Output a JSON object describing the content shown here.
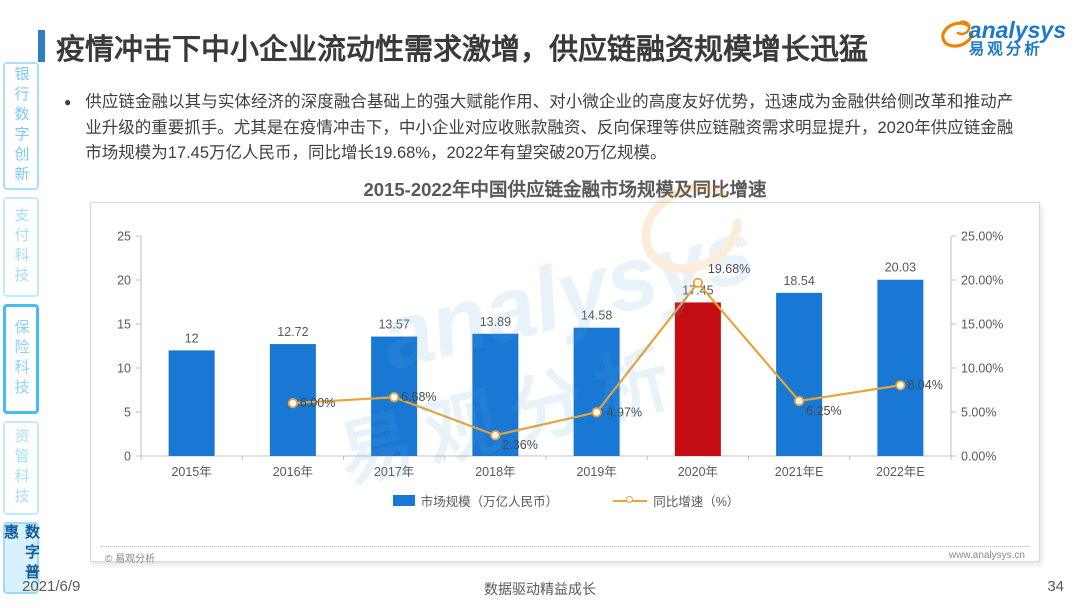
{
  "header": {
    "title": "疫情冲击下中小企业流动性需求激增，供应链融资规模增长迅猛",
    "logo": {
      "brand": "analysys",
      "brand_cn": "易观分析"
    }
  },
  "sidebar": {
    "items": [
      {
        "id": "banking-digital-innovation",
        "label": "银行数字创新",
        "style": "normal",
        "active": false
      },
      {
        "id": "payment-tech",
        "label": "支付科技",
        "style": "faint",
        "active": false
      },
      {
        "id": "insurance-tech",
        "label": "保险科技",
        "style": "outlined",
        "active": false
      },
      {
        "id": "asset-mgmt-tech",
        "label": "资管科技",
        "style": "faint",
        "active": false
      },
      {
        "id": "digital-inclusion",
        "label": "数字普惠",
        "style": "active",
        "active": true
      }
    ]
  },
  "summary": {
    "bullet": "●",
    "text": "供应链金融以其与实体经济的深度融合基础上的强大赋能作用、对小微企业的高度友好优势，迅速成为金融供给侧改革和推动产业升级的重要抓手。尤其是在疫情冲击下，中小企业对应收账款融资、反向保理等供应链融资需求明显提升，2020年供应链金融市场规模为17.45万亿人民币，同比增长19.68%，2022年有望突破20万亿规模。"
  },
  "chart_data": {
    "type": "bar+line combo",
    "title": "2015-2022年中国供应链金融市场规模及同比增速",
    "categories": [
      "2015年",
      "2016年",
      "2017年",
      "2018年",
      "2019年",
      "2020年",
      "2021年E",
      "2022年E"
    ],
    "series": [
      {
        "name": "市场规模（万亿人民币）",
        "type": "bar",
        "axis": "left",
        "values": [
          12,
          12.72,
          13.57,
          13.89,
          14.58,
          17.45,
          18.54,
          20.03
        ],
        "labels": [
          "12",
          "12.72",
          "13.57",
          "13.89",
          "14.58",
          "17.45",
          "18.54",
          "20.03"
        ],
        "color": "#1878D3",
        "highlight_index": 5,
        "highlight_color": "#C40D12"
      },
      {
        "name": "同比增速（%）",
        "type": "line",
        "axis": "right",
        "values": [
          null,
          6.0,
          6.68,
          2.36,
          4.97,
          19.68,
          6.25,
          8.04
        ],
        "labels": [
          "",
          "6.00%",
          "6.68%",
          "2.36%",
          "4.97%",
          "19.68%",
          "6.25%",
          "8.04%"
        ],
        "color": "#E8A33A"
      }
    ],
    "left_axis": {
      "min": 0,
      "max": 25,
      "ticks": [
        "0",
        "5",
        "10",
        "15",
        "20",
        "25"
      ]
    },
    "right_axis": {
      "min": 0,
      "max": 25,
      "ticks": [
        "0.00%",
        "5.00%",
        "10.00%",
        "15.00%",
        "20.00%",
        "25.00%"
      ]
    },
    "legend": [
      "市场规模（万亿人民币）",
      "同比增速（%）"
    ],
    "legend_position": "bottom",
    "grid": false
  },
  "watermark": {
    "en": "analysys",
    "cn": "易观分析"
  },
  "card": {
    "copyright": "© 易观分析",
    "website": "www.analysys.cn"
  },
  "page": {
    "date": "2021/6/9",
    "slogan": "数据驱动精益成长",
    "page_number": "34"
  }
}
